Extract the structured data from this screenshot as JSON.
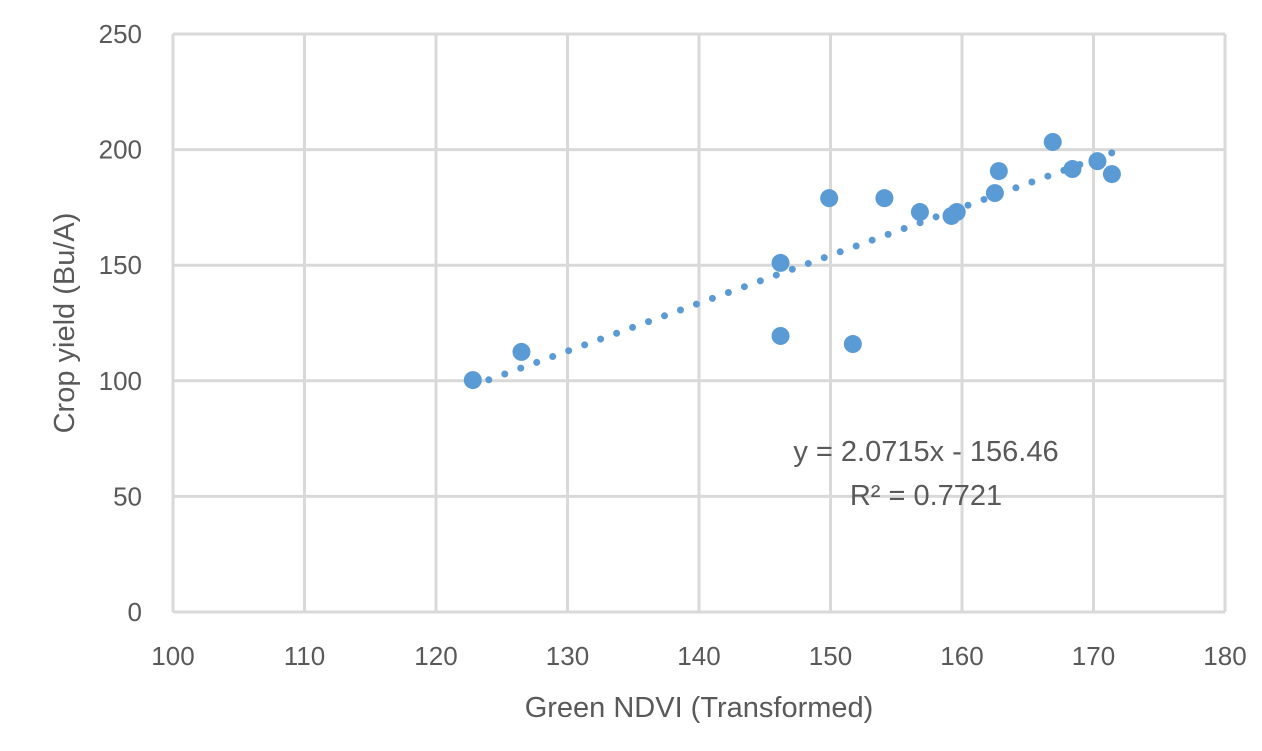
{
  "chart_data": {
    "type": "scatter",
    "xlabel": "Green NDVI (Transformed)",
    "ylabel": "Crop yield (Bu/A)",
    "xlim": [
      100,
      180
    ],
    "ylim": [
      0,
      250
    ],
    "xticks": [
      100,
      110,
      120,
      130,
      140,
      150,
      160,
      170,
      180
    ],
    "yticks": [
      0,
      50,
      100,
      150,
      200,
      250
    ],
    "grid": true,
    "legend": "none",
    "color": "#5B9BD5",
    "points": [
      {
        "x": 122.8,
        "y": 100.3
      },
      {
        "x": 126.5,
        "y": 112.5
      },
      {
        "x": 146.2,
        "y": 151.0
      },
      {
        "x": 146.2,
        "y": 119.4
      },
      {
        "x": 149.9,
        "y": 179.0
      },
      {
        "x": 151.7,
        "y": 115.9
      },
      {
        "x": 154.1,
        "y": 179.0
      },
      {
        "x": 156.8,
        "y": 173.0
      },
      {
        "x": 159.2,
        "y": 171.3
      },
      {
        "x": 159.6,
        "y": 173.0
      },
      {
        "x": 162.5,
        "y": 181.2
      },
      {
        "x": 162.8,
        "y": 190.7
      },
      {
        "x": 166.9,
        "y": 203.3
      },
      {
        "x": 168.4,
        "y": 191.6
      },
      {
        "x": 170.3,
        "y": 195.0
      },
      {
        "x": 171.4,
        "y": 189.4
      }
    ],
    "trendline": {
      "type": "linear",
      "slope": 2.0715,
      "intercept": -156.46,
      "style": "dotted"
    },
    "annotations": {
      "equation": "y = 2.0715x - 156.46",
      "r_squared": "R² = 0.7721"
    }
  }
}
